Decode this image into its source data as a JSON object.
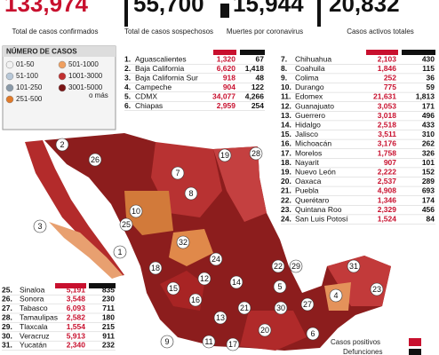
{
  "header": {
    "stats": [
      {
        "value": "133,974",
        "label": "Total de casos confirmados"
      },
      {
        "value": "55,700",
        "label": "Total de casos sospechosos"
      },
      {
        "value": "15,944",
        "label": "Muertes por coronavirus"
      },
      {
        "value": "20,832",
        "label": "Casos activos totales"
      }
    ]
  },
  "legend": {
    "title": "NÚMERO DE CASOS",
    "items": [
      "01-50",
      "51-100",
      "101-250",
      "251-500",
      "501-1000",
      "1001-3000",
      "3001-5000"
    ],
    "note": "o más"
  },
  "tables": [
    {
      "rows": [
        [
          "1.",
          "Aguascalientes",
          "1,320",
          "67"
        ],
        [
          "2.",
          "Baja California",
          "6,620",
          "1,418"
        ],
        [
          "3.",
          "Baja California Sur",
          "918",
          "48"
        ],
        [
          "4.",
          "Campeche",
          "904",
          "122"
        ],
        [
          "5.",
          "CDMX",
          "34,077",
          "4,266"
        ],
        [
          "6.",
          "Chiapas",
          "2,959",
          "254"
        ]
      ]
    },
    {
      "rows": [
        [
          "7.",
          "Chihuahua",
          "2,103",
          "430"
        ],
        [
          "8.",
          "Coahuila",
          "1,846",
          "115"
        ],
        [
          "9.",
          "Colima",
          "252",
          "36"
        ],
        [
          "10.",
          "Durango",
          "775",
          "59"
        ],
        [
          "11.",
          "Edomex",
          "21,631",
          "1,813"
        ],
        [
          "12.",
          "Guanajuato",
          "3,053",
          "171"
        ],
        [
          "13.",
          "Guerrero",
          "3,018",
          "496"
        ],
        [
          "14.",
          "Hidalgo",
          "2,518",
          "433"
        ],
        [
          "15.",
          "Jalisco",
          "3,511",
          "310"
        ],
        [
          "16.",
          "Michoacán",
          "3,176",
          "262"
        ],
        [
          "17.",
          "Morelos",
          "1,758",
          "326"
        ],
        [
          "18.",
          "Nayarit",
          "907",
          "101"
        ],
        [
          "19.",
          "Nuevo León",
          "2,222",
          "152"
        ],
        [
          "20.",
          "Oaxaca",
          "2,537",
          "289"
        ],
        [
          "21.",
          "Puebla",
          "4,908",
          "693"
        ],
        [
          "22.",
          "Querétaro",
          "1,346",
          "174"
        ],
        [
          "23.",
          "Quintana Roo",
          "2,329",
          "456"
        ],
        [
          "24.",
          "San Luis Potosí",
          "1,524",
          "84"
        ]
      ]
    },
    {
      "rows": [
        [
          "25.",
          "Sinaloa",
          "5,191",
          "835"
        ],
        [
          "26.",
          "Sonora",
          "3,548",
          "230"
        ],
        [
          "27.",
          "Tabasco",
          "6,093",
          "711"
        ],
        [
          "28.",
          "Tamaulipas",
          "2,582",
          "180"
        ],
        [
          "29.",
          "Tlaxcala",
          "1,554",
          "215"
        ],
        [
          "30.",
          "Veracruz",
          "5,913",
          "911"
        ],
        [
          "31.",
          "Yucatán",
          "2,340",
          "232"
        ]
      ]
    }
  ],
  "map": {
    "labels": [
      "2",
      "26",
      "3",
      "25",
      "7",
      "8",
      "19",
      "28",
      "10",
      "32",
      "1",
      "18",
      "24",
      "22",
      "29",
      "5",
      "15",
      "12",
      "14",
      "16",
      "13",
      "11",
      "17",
      "21",
      "9",
      "30",
      "27",
      "20",
      "6",
      "4",
      "31",
      "23"
    ]
  },
  "key": {
    "positive": "Casos positivos",
    "deaths": "Defunciones"
  }
}
